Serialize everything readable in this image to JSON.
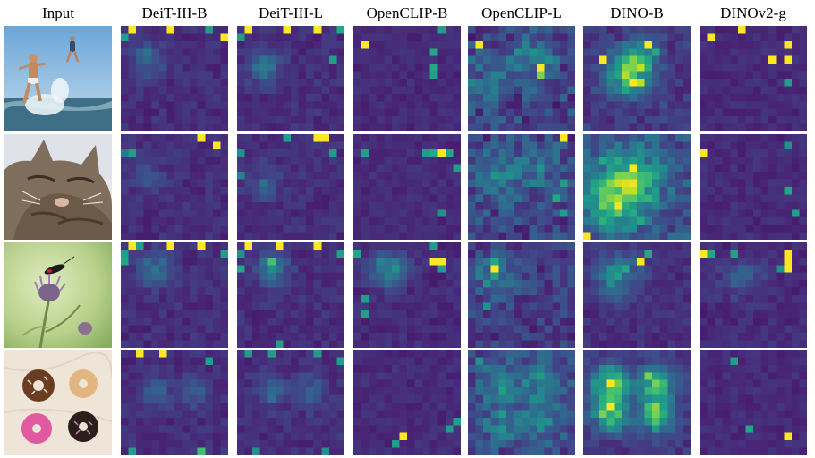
{
  "figure": {
    "columns": [
      {
        "label": "Input"
      },
      {
        "label": "DeiT-III-B"
      },
      {
        "label": "DeiT-III-L"
      },
      {
        "label": "OpenCLIP-B"
      },
      {
        "label": "OpenCLIP-L"
      },
      {
        "label": "DINO-B"
      },
      {
        "label": "DINOv2-g"
      }
    ],
    "rows": [
      {
        "input": "children-jumping-in-sea-photo"
      },
      {
        "input": "tabby-cat-photo"
      },
      {
        "input": "insect-on-thistle-flower-photo"
      },
      {
        "input": "four-donuts-photo"
      }
    ]
  },
  "palette": {
    "background": "#440154",
    "viridis": [
      "#440154",
      "#482475",
      "#414487",
      "#355f8d",
      "#2a788e",
      "#21918c",
      "#22a884",
      "#44bf70",
      "#7ad151",
      "#bddf26",
      "#fde725"
    ]
  },
  "chart_data": {
    "type": "heatmap",
    "grid": [
      14,
      14
    ],
    "value_range": [
      0,
      1
    ],
    "models": [
      "DeiT-III-B",
      "DeiT-III-L",
      "OpenCLIP-B",
      "OpenCLIP-L",
      "DINO-B",
      "DINOv2-g"
    ],
    "maps": [
      [
        {
          "background": 0.13,
          "noise": 0.05,
          "hotspots": [
            [
              0,
              1,
              1.0
            ],
            [
              0,
              6,
              1.0
            ],
            [
              1,
              0,
              0.55
            ],
            [
              0,
              11,
              0.55
            ],
            [
              1,
              13,
              1.0
            ]
          ],
          "blobs": [
            [
              4,
              3,
              0.22,
              1.5
            ]
          ]
        },
        {
          "background": 0.13,
          "noise": 0.05,
          "hotspots": [
            [
              0,
              1,
              1.0
            ],
            [
              0,
              6,
              1.0
            ],
            [
              0,
              10,
              1.0
            ],
            [
              1,
              0,
              0.55
            ],
            [
              4,
              12,
              0.55
            ],
            [
              0,
              13,
              0.6
            ]
          ],
          "blobs": [
            [
              5,
              3,
              0.22,
              1.5
            ]
          ]
        },
        {
          "background": 0.12,
          "noise": 0.04,
          "hotspots": [
            [
              2,
              1,
              1.0
            ],
            [
              3,
              10,
              0.6
            ],
            [
              5,
              10,
              0.6
            ],
            [
              6,
              10,
              0.55
            ],
            [
              0,
              11,
              0.55
            ]
          ],
          "blobs": []
        },
        {
          "background": 0.2,
          "noise": 0.14,
          "hotspots": [
            [
              2,
              1,
              1.0
            ],
            [
              5,
              9,
              1.0
            ],
            [
              6,
              9,
              0.8
            ],
            [
              3,
              8,
              0.5
            ]
          ],
          "blobs": [
            [
              4,
              8,
              0.25,
              2.0
            ],
            [
              7,
              2,
              0.18,
              2.0
            ]
          ]
        },
        {
          "background": 0.17,
          "noise": 0.08,
          "hotspots": [
            [
              4,
              2,
              1.0
            ],
            [
              2,
              8,
              1.0
            ],
            [
              7,
              6,
              1.0
            ],
            [
              7,
              7,
              0.9
            ],
            [
              5,
              7,
              0.9
            ],
            [
              3,
              9,
              0.6
            ]
          ],
          "blobs": [
            [
              6,
              5,
              0.45,
              2.0
            ],
            [
              4,
              7,
              0.35,
              1.5
            ]
          ]
        },
        {
          "background": 0.12,
          "noise": 0.04,
          "hotspots": [
            [
              1,
              1,
              1.0
            ],
            [
              0,
              5,
              1.0
            ],
            [
              2,
              11,
              1.0
            ],
            [
              4,
              11,
              1.0
            ],
            [
              4,
              9,
              1.0
            ],
            [
              7,
              11,
              0.55
            ]
          ],
          "blobs": []
        }
      ],
      [
        {
          "background": 0.13,
          "noise": 0.05,
          "hotspots": [
            [
              0,
              10,
              1.0
            ],
            [
              1,
              12,
              1.0
            ],
            [
              2,
              1,
              0.55
            ],
            [
              2,
              0,
              0.4
            ]
          ],
          "blobs": [
            [
              5,
              3,
              0.12,
              1.5
            ]
          ]
        },
        {
          "background": 0.13,
          "noise": 0.05,
          "hotspots": [
            [
              0,
              6,
              0.55
            ],
            [
              0,
              10,
              1.0
            ],
            [
              0,
              11,
              1.0
            ],
            [
              2,
              12,
              0.55
            ],
            [
              2,
              0,
              0.5
            ],
            [
              5,
              0,
              0.45
            ]
          ],
          "blobs": [
            [
              6,
              3,
              0.15,
              1.5
            ]
          ]
        },
        {
          "background": 0.12,
          "noise": 0.04,
          "hotspots": [
            [
              2,
              9,
              0.55
            ],
            [
              2,
              10,
              0.6
            ],
            [
              2,
              11,
              1.0
            ],
            [
              2,
              12,
              0.6
            ],
            [
              4,
              13,
              0.55
            ],
            [
              2,
              1,
              0.55
            ],
            [
              10,
              11,
              0.5
            ]
          ],
          "blobs": []
        },
        {
          "background": 0.2,
          "noise": 0.13,
          "hotspots": [
            [
              0,
              12,
              1.0
            ],
            [
              6,
              12,
              0.55
            ],
            [
              8,
              11,
              0.6
            ],
            [
              10,
              12,
              0.55
            ]
          ],
          "blobs": [
            [
              5,
              3,
              0.25,
              2.0
            ],
            [
              4,
              9,
              0.18,
              2.0
            ]
          ]
        },
        {
          "background": 0.25,
          "noise": 0.12,
          "hotspots": [
            [
              4,
              6,
              1.0
            ],
            [
              6,
              5,
              0.9
            ],
            [
              8,
              4,
              0.8
            ],
            [
              7,
              5,
              0.9
            ],
            [
              13,
              0,
              1.0
            ],
            [
              11,
              7,
              0.6
            ],
            [
              3,
              2,
              0.6
            ]
          ],
          "blobs": [
            [
              6,
              5,
              0.5,
              3.0
            ],
            [
              9,
              3,
              0.35,
              2.0
            ]
          ]
        },
        {
          "background": 0.12,
          "noise": 0.04,
          "hotspots": [
            [
              2,
              0,
              1.0
            ],
            [
              7,
              11,
              0.6
            ],
            [
              10,
              12,
              0.55
            ],
            [
              1,
              11,
              0.5
            ]
          ],
          "blobs": []
        }
      ],
      [
        {
          "background": 0.13,
          "noise": 0.05,
          "hotspots": [
            [
              0,
              1,
              1.0
            ],
            [
              0,
              2,
              0.55
            ],
            [
              0,
              6,
              1.0
            ],
            [
              0,
              10,
              1.0
            ],
            [
              1,
              0,
              0.55
            ],
            [
              2,
              0,
              0.6
            ],
            [
              1,
              13,
              0.55
            ]
          ],
          "blobs": [
            [
              3,
              4,
              0.25,
              1.5
            ]
          ]
        },
        {
          "background": 0.13,
          "noise": 0.05,
          "hotspots": [
            [
              0,
              1,
              1.0
            ],
            [
              0,
              5,
              1.0
            ],
            [
              0,
              10,
              1.0
            ],
            [
              1,
              0,
              0.5
            ],
            [
              2,
              4,
              0.7
            ],
            [
              3,
              0,
              0.6
            ],
            [
              1,
              13,
              0.55
            ],
            [
              13,
              5,
              0.55
            ]
          ],
          "blobs": [
            [
              3,
              4,
              0.3,
              1.5
            ]
          ]
        },
        {
          "background": 0.12,
          "noise": 0.05,
          "hotspots": [
            [
              1,
              0,
              0.6
            ],
            [
              0,
              10,
              0.55
            ],
            [
              2,
              10,
              1.0
            ],
            [
              2,
              11,
              1.0
            ],
            [
              3,
              11,
              0.55
            ],
            [
              7,
              1,
              0.55
            ],
            [
              9,
              1,
              0.55
            ]
          ],
          "blobs": [
            [
              3,
              4,
              0.35,
              1.6
            ]
          ]
        },
        {
          "background": 0.17,
          "noise": 0.1,
          "hotspots": [
            [
              3,
              3,
              1.0
            ],
            [
              2,
              3,
              0.6
            ],
            [
              8,
              2,
              0.5
            ]
          ],
          "blobs": [
            [
              4,
              3,
              0.3,
              1.8
            ]
          ]
        },
        {
          "background": 0.13,
          "noise": 0.05,
          "hotspots": [
            [
              2,
              7,
              1.0
            ],
            [
              1,
              8,
              0.6
            ],
            [
              3,
              5,
              0.6
            ]
          ],
          "blobs": [
            [
              4,
              4,
              0.35,
              2.0
            ]
          ]
        },
        {
          "background": 0.12,
          "noise": 0.05,
          "hotspots": [
            [
              1,
              0,
              1.0
            ],
            [
              1,
              1,
              0.6
            ],
            [
              1,
              11,
              1.0
            ],
            [
              2,
              11,
              1.0
            ],
            [
              3,
              11,
              1.0
            ],
            [
              1,
              4,
              0.55
            ],
            [
              3,
              10,
              0.5
            ]
          ],
          "blobs": [
            [
              4,
              5,
              0.18,
              1.8
            ]
          ]
        }
      ],
      [
        {
          "background": 0.13,
          "noise": 0.05,
          "hotspots": [
            [
              0,
              2,
              1.0
            ],
            [
              0,
              5,
              1.0
            ],
            [
              1,
              11,
              0.55
            ],
            [
              13,
              1,
              0.55
            ],
            [
              13,
              10,
              0.7
            ]
          ],
          "blobs": [
            [
              5,
              4,
              0.18,
              1.4
            ],
            [
              5,
              9,
              0.18,
              1.4
            ]
          ]
        },
        {
          "background": 0.13,
          "noise": 0.05,
          "hotspots": [
            [
              0,
              1,
              0.55
            ],
            [
              0,
              4,
              0.55
            ],
            [
              0,
              10,
              0.55
            ],
            [
              1,
              13,
              0.55
            ],
            [
              13,
              2,
              0.5
            ],
            [
              13,
              11,
              0.5
            ]
          ],
          "blobs": [
            [
              5,
              4,
              0.18,
              1.4
            ],
            [
              5,
              9,
              0.18,
              1.4
            ]
          ]
        },
        {
          "background": 0.12,
          "noise": 0.04,
          "hotspots": [
            [
              11,
              6,
              1.0
            ],
            [
              12,
              5,
              0.55
            ],
            [
              10,
              12,
              0.55
            ],
            [
              9,
              13,
              0.55
            ]
          ],
          "blobs": []
        },
        {
          "background": 0.22,
          "noise": 0.12,
          "hotspots": [
            [
              1,
              1,
              0.5
            ],
            [
              10,
              3,
              0.45
            ]
          ],
          "blobs": [
            [
              4,
              4,
              0.2,
              1.8
            ],
            [
              4,
              9,
              0.2,
              1.8
            ],
            [
              9,
              4,
              0.2,
              1.8
            ],
            [
              9,
              9,
              0.2,
              1.8
            ]
          ]
        },
        {
          "background": 0.16,
          "noise": 0.06,
          "hotspots": [
            [
              4,
              3,
              1.0
            ],
            [
              4,
              9,
              0.8
            ],
            [
              7,
              3,
              1.0
            ],
            [
              8,
              9,
              0.8
            ],
            [
              3,
              8,
              0.8
            ],
            [
              8,
              2,
              0.8
            ]
          ],
          "blobs": [
            [
              4,
              3,
              0.55,
              1.6
            ],
            [
              4,
              9,
              0.55,
              1.6
            ],
            [
              8,
              3,
              0.55,
              1.6
            ],
            [
              8,
              9,
              0.55,
              1.6
            ]
          ]
        },
        {
          "background": 0.12,
          "noise": 0.04,
          "hotspots": [
            [
              1,
              4,
              0.55
            ],
            [
              10,
              6,
              0.6
            ],
            [
              11,
              11,
              1.0
            ]
          ],
          "blobs": []
        }
      ]
    ]
  }
}
